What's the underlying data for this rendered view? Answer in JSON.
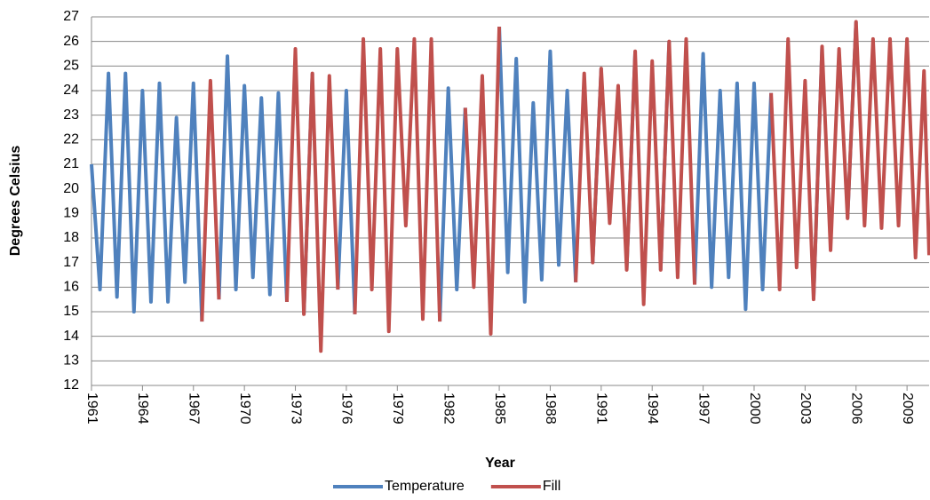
{
  "chart_data": {
    "type": "line",
    "x_label": "Year",
    "y_label": "Degrees Celsius",
    "x": [
      1961,
      1961.5,
      1962,
      1962.5,
      1963,
      1963.5,
      1964,
      1964.5,
      1965,
      1965.5,
      1966,
      1966.5,
      1967,
      1967.5,
      1968,
      1968.5,
      1969,
      1969.5,
      1970,
      1970.5,
      1971,
      1971.5,
      1972,
      1972.5,
      1973,
      1973.5,
      1974,
      1974.5,
      1975,
      1975.5,
      1976,
      1976.5,
      1977,
      1977.5,
      1978,
      1978.5,
      1979,
      1979.5,
      1980,
      1980.5,
      1981,
      1981.5,
      1982,
      1982.5,
      1983,
      1983.5,
      1984,
      1984.5,
      1985,
      1985.5,
      1986,
      1986.5,
      1987,
      1987.5,
      1988,
      1988.5,
      1989,
      1989.5,
      1990,
      1990.5,
      1991,
      1991.5,
      1992,
      1992.5,
      1993,
      1993.5,
      1994,
      1994.5,
      1995,
      1995.5,
      1996,
      1996.5,
      1997,
      1997.5,
      1998,
      1998.5,
      1999,
      1999.5,
      2000,
      2000.5,
      2001,
      2001.5,
      2002,
      2002.5,
      2003,
      2003.5,
      2004,
      2004.5,
      2005,
      2005.5,
      2006,
      2006.5,
      2007,
      2007.5,
      2008,
      2008.5,
      2009,
      2009.5,
      2010,
      2010.3
    ],
    "series": [
      {
        "name": "Temperature",
        "color": "#4f81bd",
        "values": [
          21.0,
          15.9,
          24.7,
          15.6,
          24.7,
          15.0,
          24.0,
          15.4,
          24.3,
          15.4,
          22.9,
          16.2,
          24.3,
          14.6,
          null,
          15.5,
          25.4,
          15.9,
          24.2,
          16.4,
          23.7,
          15.7,
          23.9,
          15.4,
          null,
          14.9,
          24.7,
          null,
          null,
          15.9,
          24.0,
          14.9,
          null,
          15.9,
          null,
          14.2,
          null,
          null,
          null,
          null,
          null,
          14.6,
          24.1,
          15.9,
          23.3,
          null,
          null,
          null,
          26.6,
          16.6,
          25.3,
          15.4,
          23.5,
          16.3,
          25.6,
          16.9,
          24.0,
          16.2,
          null,
          17.0,
          24.9,
          null,
          null,
          16.7,
          25.6,
          null,
          null,
          16.7,
          26.0,
          null,
          null,
          16.1,
          25.5,
          16.0,
          24.0,
          16.4,
          24.3,
          15.1,
          24.3,
          15.9,
          23.9,
          null,
          null,
          16.8,
          null,
          15.5,
          25.8,
          null,
          null,
          18.8,
          26.8,
          null,
          null,
          null,
          null,
          null,
          null,
          null,
          null,
          null
        ]
      },
      {
        "name": "Fill",
        "color": "#c0504d",
        "values": [
          null,
          null,
          null,
          null,
          null,
          null,
          null,
          null,
          null,
          null,
          null,
          null,
          null,
          14.6,
          24.4,
          15.5,
          null,
          null,
          null,
          null,
          null,
          null,
          null,
          15.4,
          25.7,
          14.9,
          24.7,
          13.4,
          24.6,
          15.9,
          null,
          14.9,
          26.1,
          15.9,
          25.7,
          14.2,
          25.7,
          18.5,
          26.1,
          14.7,
          26.1,
          14.6,
          null,
          null,
          23.3,
          16.0,
          24.6,
          14.1,
          26.6,
          null,
          null,
          null,
          null,
          null,
          null,
          null,
          null,
          16.2,
          24.7,
          17.0,
          24.9,
          18.6,
          24.2,
          16.7,
          25.6,
          15.3,
          25.2,
          16.7,
          26.0,
          16.4,
          26.1,
          16.1,
          null,
          null,
          null,
          null,
          null,
          null,
          null,
          null,
          23.9,
          15.9,
          26.1,
          16.8,
          24.4,
          15.5,
          25.8,
          17.5,
          25.7,
          18.8,
          26.8,
          18.5,
          26.1,
          18.4,
          26.1,
          18.5,
          26.1,
          17.2,
          24.8,
          17.3
        ]
      }
    ],
    "xlim": [
      1961,
      2010.3
    ],
    "xticks": [
      1961,
      1964,
      1967,
      1970,
      1973,
      1976,
      1979,
      1982,
      1985,
      1988,
      1991,
      1994,
      1997,
      2000,
      2003,
      2006,
      2009
    ],
    "ylim": [
      12,
      27
    ],
    "yticks": [
      12,
      13,
      14,
      15,
      16,
      17,
      18,
      19,
      20,
      21,
      22,
      23,
      24,
      25,
      26,
      27
    ],
    "grid": true,
    "legend": "bottom"
  }
}
